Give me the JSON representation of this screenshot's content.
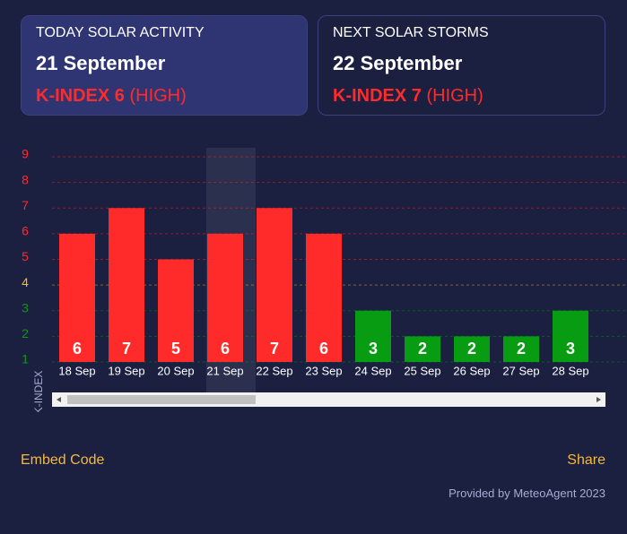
{
  "cards": [
    {
      "heading": "TODAY SOLAR ACTIVITY",
      "date": "21 September",
      "index": "K-INDEX 6",
      "level": "(HIGH)"
    },
    {
      "heading": "NEXT SOLAR STORMS",
      "date": "22 September",
      "index": "K-INDEX 7",
      "level": "(HIGH)"
    }
  ],
  "chart_data": {
    "type": "bar",
    "y_label": "K-INDEX",
    "categories": [
      "18 Sep",
      "19 Sep",
      "20 Sep",
      "21 Sep",
      "22 Sep",
      "23 Sep",
      "24 Sep",
      "25 Sep",
      "26 Sep",
      "27 Sep",
      "28 Sep"
    ],
    "values": [
      6,
      7,
      5,
      6,
      7,
      6,
      3,
      2,
      2,
      2,
      3
    ],
    "colors": [
      "#ff2b2b",
      "#ff2b2b",
      "#ff2b2b",
      "#ff2b2b",
      "#ff2b2b",
      "#ff2b2b",
      "#079c12",
      "#079c12",
      "#079c12",
      "#079c12",
      "#079c12"
    ],
    "highlight": "21 Sep",
    "ylim": [
      1,
      9
    ],
    "yticks": [
      1,
      2,
      3,
      4,
      5,
      6,
      7,
      8,
      9
    ],
    "ytick_colors": [
      "#079c12",
      "#079c12",
      "#079c12",
      "#f5b93b",
      "#ff2b2b",
      "#ff2b2b",
      "#ff2b2b",
      "#ff2b2b",
      "#ff2b2b"
    ],
    "grid": true
  },
  "footer": {
    "embed": "Embed Code",
    "share": "Share",
    "credit": "Provided by MeteoAgent 2023"
  }
}
